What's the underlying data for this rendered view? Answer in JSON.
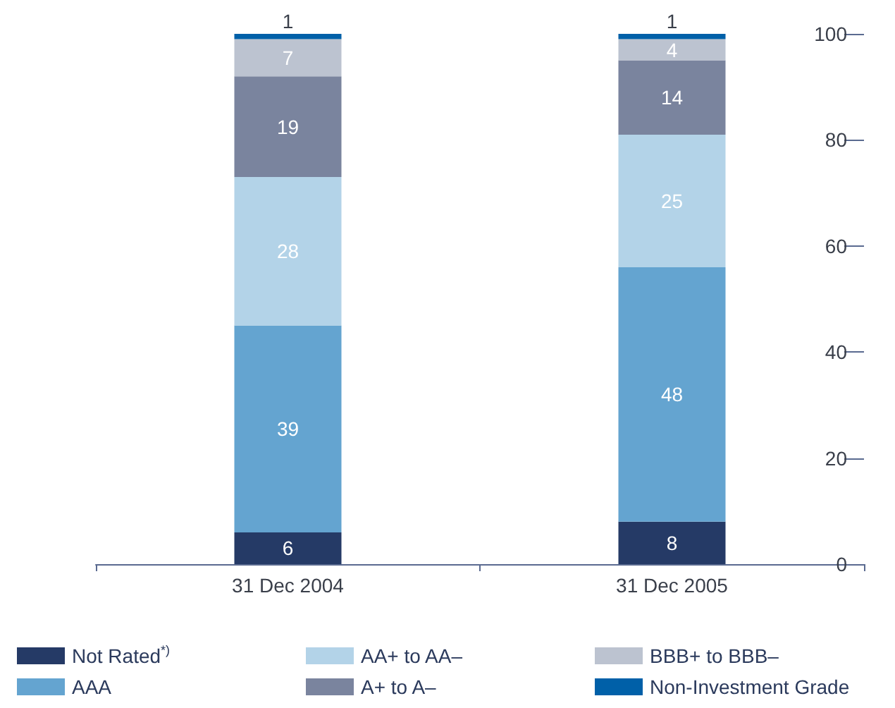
{
  "chart_data": {
    "type": "bar",
    "stacked": true,
    "data_labels": true,
    "grid": false,
    "legend": "bottom",
    "categories": [
      "31 Dec 2004",
      "31 Dec 2005"
    ],
    "ylim": [
      0,
      100
    ],
    "yticks": [
      0,
      20,
      40,
      60,
      80,
      100
    ],
    "series": [
      {
        "name": "Not Rated$^{*)}$",
        "color": "#253a66",
        "values": [
          6,
          8
        ]
      },
      {
        "name": "AAA",
        "color": "#64a4d0",
        "values": [
          39,
          48
        ]
      },
      {
        "name": "AA+ to AA–",
        "color": "#b3d3e8",
        "values": [
          28,
          25
        ]
      },
      {
        "name": "A+ to A–",
        "color": "#7a849e",
        "values": [
          19,
          14
        ]
      },
      {
        "name": "BBB+ to BBB–",
        "color": "#bcc3d0",
        "values": [
          7,
          4
        ]
      },
      {
        "name": "Non-Investment Grade",
        "color": "#0060a8",
        "values": [
          1,
          1
        ]
      }
    ]
  }
}
